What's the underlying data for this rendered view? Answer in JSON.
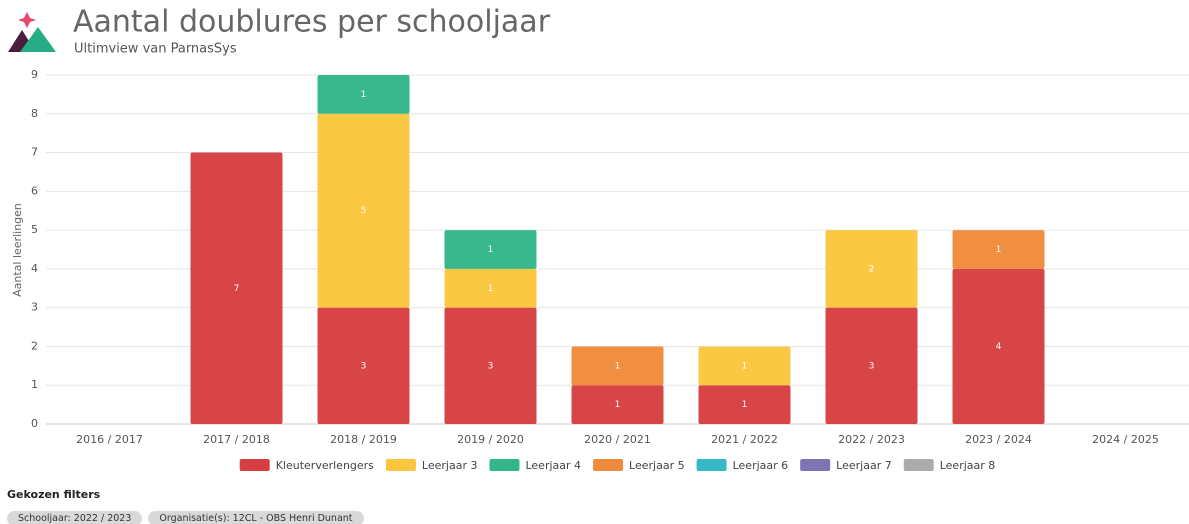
{
  "chart_data": {
    "type": "stacked_bar",
    "title": "Aantal doublures per schooljaar",
    "subtitle": "Ultimview van ParnasSys",
    "y_label": "Aantal leerlingen",
    "categories": [
      "2016 / 2017",
      "2017 / 2018",
      "2018 / 2019",
      "2019 / 2020",
      "2020 / 2021",
      "2021 / 2022",
      "2022 / 2023",
      "2023 / 2024",
      "2024 / 2025"
    ],
    "series": [
      {
        "name": "Kleuterverlengers",
        "color": "#d63f41",
        "values": [
          null,
          7,
          3,
          3,
          1,
          1,
          3,
          4,
          null
        ]
      },
      {
        "name": "Leerjaar 3",
        "color": "#fbc63e",
        "values": [
          null,
          null,
          5,
          1,
          null,
          1,
          2,
          null,
          null
        ]
      },
      {
        "name": "Leerjaar 4",
        "color": "#33b68a",
        "values": [
          null,
          null,
          1,
          1,
          null,
          null,
          null,
          null,
          null
        ]
      },
      {
        "name": "Leerjaar 5",
        "color": "#f08a3c",
        "values": [
          null,
          null,
          null,
          null,
          1,
          null,
          null,
          1,
          null
        ]
      },
      {
        "name": "Leerjaar 6",
        "color": "#36b8c8",
        "values": [
          null,
          null,
          null,
          null,
          null,
          null,
          null,
          null,
          null
        ]
      },
      {
        "name": "Leerjaar 7",
        "color": "#7f73b3",
        "values": [
          null,
          null,
          null,
          null,
          null,
          null,
          null,
          null,
          null
        ]
      },
      {
        "name": "Leerjaar 8",
        "color": "#ababab",
        "values": [
          null,
          null,
          null,
          null,
          null,
          null,
          null,
          null,
          null
        ]
      }
    ],
    "ylim": [
      0,
      9
    ],
    "yticks": [
      0,
      1,
      2,
      3,
      4,
      5,
      6,
      7,
      8,
      9
    ],
    "grid": true,
    "legend": "bottom"
  },
  "filters": {
    "title": "Gekozen filters",
    "items": [
      "Schooljaar: 2022 / 2023",
      "Organisatie(s): 12CL - OBS Henri Dunant"
    ]
  }
}
